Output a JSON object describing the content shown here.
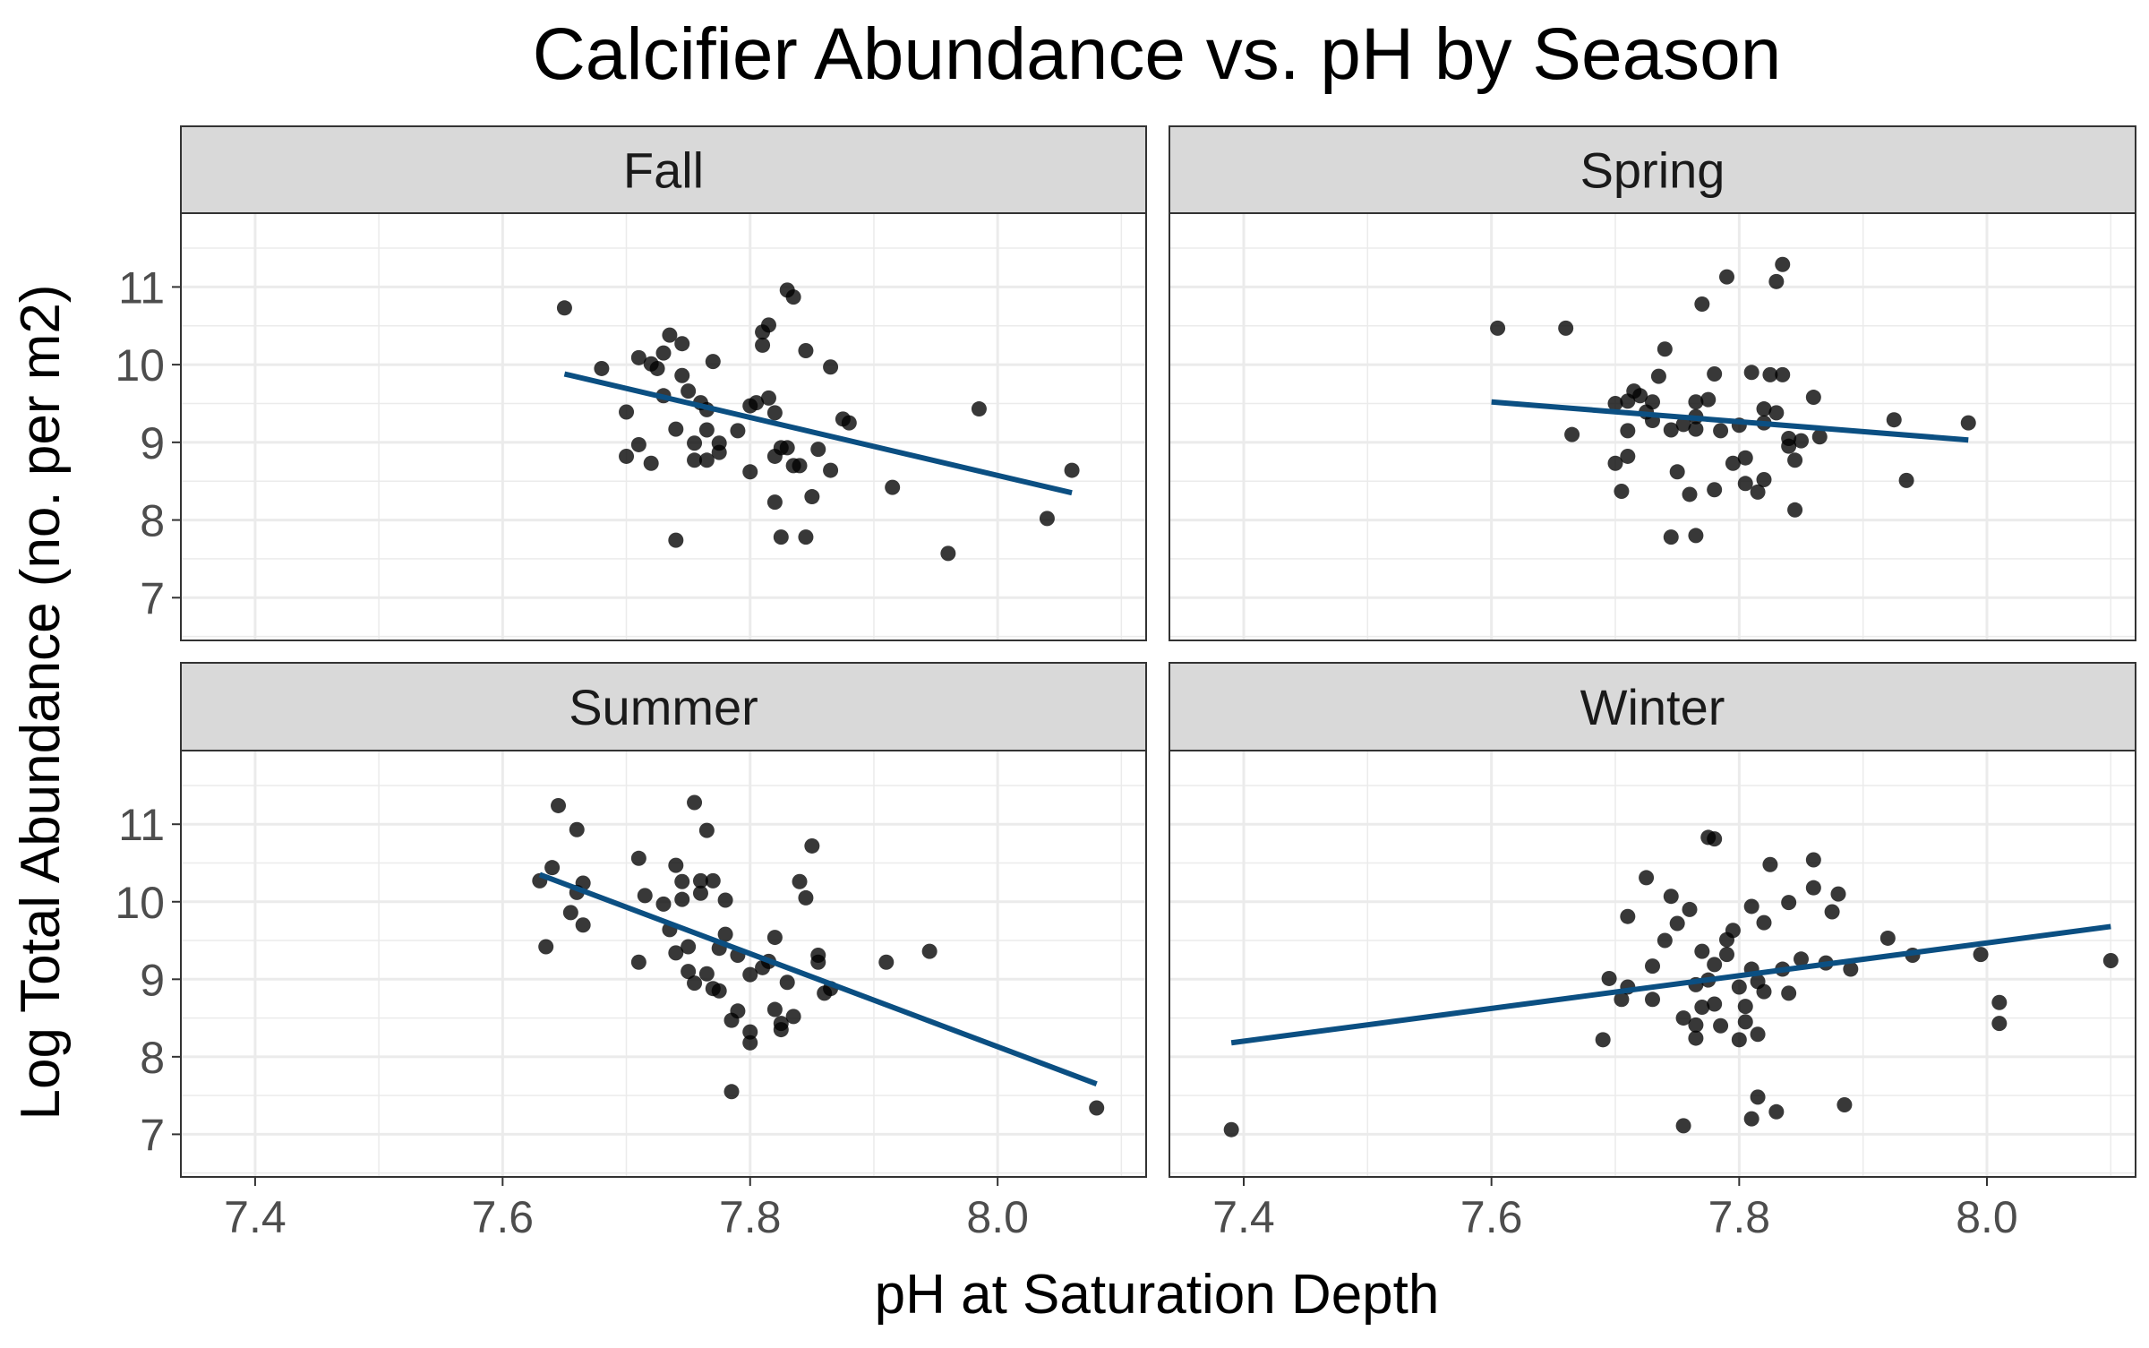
{
  "chart_data": {
    "type": "scatter",
    "title": "Calcifier Abundance vs. pH by Season",
    "xlabel": "pH at Saturation Depth",
    "ylabel": "Log Total Abundance (no. per m2)",
    "xlim": [
      7.34,
      8.12
    ],
    "ylim": [
      6.45,
      11.95
    ],
    "x_ticks": [
      7.4,
      7.6,
      7.8,
      8.0
    ],
    "y_ticks": [
      7,
      8,
      9,
      10,
      11
    ],
    "grid": true,
    "facets": [
      "Fall",
      "Spring",
      "Summer",
      "Winter"
    ],
    "colors": {
      "points": "#000000",
      "trend": "#0b4f82",
      "strip": "#d9d9d9",
      "grid": "#ebebeb"
    },
    "series": [
      {
        "facet": "Fall",
        "trend": {
          "x": [
            7.65,
            8.06
          ],
          "y": [
            9.88,
            8.35
          ]
        },
        "points": [
          [
            7.65,
            10.73
          ],
          [
            7.68,
            9.95
          ],
          [
            7.7,
            9.39
          ],
          [
            7.7,
            8.82
          ],
          [
            7.71,
            10.09
          ],
          [
            7.71,
            8.97
          ],
          [
            7.72,
            10.01
          ],
          [
            7.72,
            8.73
          ],
          [
            7.725,
            9.95
          ],
          [
            7.73,
            9.6
          ],
          [
            7.73,
            10.15
          ],
          [
            7.735,
            10.38
          ],
          [
            7.74,
            9.17
          ],
          [
            7.74,
            7.74
          ],
          [
            7.745,
            10.27
          ],
          [
            7.745,
            9.86
          ],
          [
            7.75,
            9.66
          ],
          [
            7.755,
            8.99
          ],
          [
            7.755,
            8.77
          ],
          [
            7.76,
            9.51
          ],
          [
            7.765,
            9.42
          ],
          [
            7.765,
            9.16
          ],
          [
            7.765,
            8.77
          ],
          [
            7.77,
            10.04
          ],
          [
            7.775,
            8.99
          ],
          [
            7.775,
            8.87
          ],
          [
            7.79,
            9.15
          ],
          [
            7.8,
            9.47
          ],
          [
            7.8,
            8.62
          ],
          [
            7.805,
            9.51
          ],
          [
            7.81,
            10.42
          ],
          [
            7.81,
            10.25
          ],
          [
            7.815,
            9.57
          ],
          [
            7.815,
            10.51
          ],
          [
            7.82,
            8.23
          ],
          [
            7.82,
            8.82
          ],
          [
            7.82,
            9.38
          ],
          [
            7.825,
            7.78
          ],
          [
            7.825,
            8.93
          ],
          [
            7.83,
            10.96
          ],
          [
            7.83,
            8.93
          ],
          [
            7.835,
            8.7
          ],
          [
            7.835,
            10.87
          ],
          [
            7.84,
            8.7
          ],
          [
            7.845,
            10.18
          ],
          [
            7.845,
            7.78
          ],
          [
            7.85,
            8.3
          ],
          [
            7.855,
            8.91
          ],
          [
            7.865,
            9.97
          ],
          [
            7.865,
            8.64
          ],
          [
            7.875,
            9.3
          ],
          [
            7.88,
            9.25
          ],
          [
            7.915,
            8.42
          ],
          [
            7.96,
            7.57
          ],
          [
            7.985,
            9.43
          ],
          [
            8.04,
            8.02
          ],
          [
            8.06,
            8.64
          ]
        ]
      },
      {
        "facet": "Spring",
        "trend": {
          "x": [
            7.6,
            7.985
          ],
          "y": [
            9.52,
            9.03
          ]
        },
        "points": [
          [
            7.605,
            10.47
          ],
          [
            7.66,
            10.47
          ],
          [
            7.665,
            9.1
          ],
          [
            7.7,
            8.73
          ],
          [
            7.7,
            9.5
          ],
          [
            7.705,
            8.37
          ],
          [
            7.71,
            9.53
          ],
          [
            7.71,
            9.15
          ],
          [
            7.71,
            8.82
          ],
          [
            7.715,
            9.66
          ],
          [
            7.72,
            9.6
          ],
          [
            7.725,
            9.39
          ],
          [
            7.73,
            9.52
          ],
          [
            7.73,
            9.28
          ],
          [
            7.735,
            9.85
          ],
          [
            7.74,
            10.2
          ],
          [
            7.745,
            9.16
          ],
          [
            7.745,
            7.78
          ],
          [
            7.75,
            8.62
          ],
          [
            7.755,
            9.23
          ],
          [
            7.76,
            8.33
          ],
          [
            7.765,
            9.17
          ],
          [
            7.765,
            9.52
          ],
          [
            7.765,
            9.33
          ],
          [
            7.765,
            7.8
          ],
          [
            7.77,
            10.78
          ],
          [
            7.775,
            9.55
          ],
          [
            7.78,
            8.39
          ],
          [
            7.78,
            9.88
          ],
          [
            7.785,
            9.15
          ],
          [
            7.79,
            11.13
          ],
          [
            7.795,
            8.73
          ],
          [
            7.8,
            9.22
          ],
          [
            7.805,
            8.8
          ],
          [
            7.805,
            8.47
          ],
          [
            7.81,
            9.9
          ],
          [
            7.815,
            8.36
          ],
          [
            7.82,
            9.43
          ],
          [
            7.82,
            8.52
          ],
          [
            7.82,
            9.25
          ],
          [
            7.825,
            9.87
          ],
          [
            7.83,
            9.38
          ],
          [
            7.83,
            11.07
          ],
          [
            7.835,
            11.29
          ],
          [
            7.835,
            9.87
          ],
          [
            7.84,
            8.95
          ],
          [
            7.84,
            9.05
          ],
          [
            7.845,
            8.77
          ],
          [
            7.845,
            8.13
          ],
          [
            7.85,
            9.02
          ],
          [
            7.86,
            9.58
          ],
          [
            7.865,
            9.07
          ],
          [
            7.925,
            9.29
          ],
          [
            7.935,
            8.51
          ],
          [
            7.985,
            9.25
          ]
        ]
      },
      {
        "facet": "Summer",
        "trend": {
          "x": [
            7.63,
            8.08
          ],
          "y": [
            10.35,
            7.65
          ]
        },
        "points": [
          [
            7.63,
            10.27
          ],
          [
            7.635,
            9.42
          ],
          [
            7.64,
            10.44
          ],
          [
            7.645,
            11.24
          ],
          [
            7.655,
            9.86
          ],
          [
            7.66,
            10.12
          ],
          [
            7.66,
            10.93
          ],
          [
            7.665,
            9.7
          ],
          [
            7.665,
            10.24
          ],
          [
            7.71,
            10.56
          ],
          [
            7.71,
            9.22
          ],
          [
            7.715,
            10.08
          ],
          [
            7.73,
            9.97
          ],
          [
            7.735,
            9.64
          ],
          [
            7.74,
            10.47
          ],
          [
            7.74,
            9.34
          ],
          [
            7.745,
            10.26
          ],
          [
            7.745,
            10.03
          ],
          [
            7.75,
            9.42
          ],
          [
            7.75,
            9.1
          ],
          [
            7.755,
            11.28
          ],
          [
            7.755,
            8.95
          ],
          [
            7.76,
            10.27
          ],
          [
            7.76,
            10.11
          ],
          [
            7.765,
            9.07
          ],
          [
            7.765,
            10.92
          ],
          [
            7.77,
            8.88
          ],
          [
            7.77,
            10.27
          ],
          [
            7.775,
            9.4
          ],
          [
            7.775,
            8.85
          ],
          [
            7.78,
            10.02
          ],
          [
            7.78,
            9.58
          ],
          [
            7.785,
            8.47
          ],
          [
            7.785,
            7.55
          ],
          [
            7.79,
            9.31
          ],
          [
            7.79,
            8.59
          ],
          [
            7.8,
            9.06
          ],
          [
            7.8,
            8.18
          ],
          [
            7.8,
            8.32
          ],
          [
            7.81,
            9.15
          ],
          [
            7.815,
            9.23
          ],
          [
            7.82,
            8.61
          ],
          [
            7.82,
            9.54
          ],
          [
            7.825,
            8.43
          ],
          [
            7.825,
            8.35
          ],
          [
            7.83,
            8.96
          ],
          [
            7.835,
            8.52
          ],
          [
            7.84,
            10.26
          ],
          [
            7.845,
            10.05
          ],
          [
            7.85,
            10.72
          ],
          [
            7.855,
            9.31
          ],
          [
            7.855,
            9.22
          ],
          [
            7.86,
            8.82
          ],
          [
            7.865,
            8.88
          ],
          [
            7.91,
            9.22
          ],
          [
            7.945,
            9.36
          ],
          [
            8.08,
            7.34
          ]
        ]
      },
      {
        "facet": "Winter",
        "trend": {
          "x": [
            7.39,
            8.1
          ],
          "y": [
            8.18,
            9.68
          ]
        },
        "points": [
          [
            7.39,
            7.06
          ],
          [
            7.69,
            8.22
          ],
          [
            7.695,
            9.01
          ],
          [
            7.705,
            8.74
          ],
          [
            7.71,
            9.81
          ],
          [
            7.71,
            8.9
          ],
          [
            7.725,
            10.31
          ],
          [
            7.73,
            9.17
          ],
          [
            7.73,
            8.74
          ],
          [
            7.74,
            9.5
          ],
          [
            7.745,
            10.07
          ],
          [
            7.75,
            9.72
          ],
          [
            7.755,
            8.5
          ],
          [
            7.755,
            7.11
          ],
          [
            7.76,
            9.9
          ],
          [
            7.765,
            8.41
          ],
          [
            7.765,
            8.24
          ],
          [
            7.765,
            8.93
          ],
          [
            7.77,
            9.36
          ],
          [
            7.77,
            8.64
          ],
          [
            7.775,
            8.99
          ],
          [
            7.775,
            10.83
          ],
          [
            7.78,
            10.81
          ],
          [
            7.78,
            9.19
          ],
          [
            7.78,
            8.68
          ],
          [
            7.785,
            8.4
          ],
          [
            7.79,
            9.51
          ],
          [
            7.79,
            9.32
          ],
          [
            7.795,
            9.63
          ],
          [
            7.8,
            8.9
          ],
          [
            7.8,
            8.22
          ],
          [
            7.805,
            8.45
          ],
          [
            7.805,
            8.65
          ],
          [
            7.81,
            9.13
          ],
          [
            7.81,
            7.2
          ],
          [
            7.81,
            9.94
          ],
          [
            7.815,
            8.97
          ],
          [
            7.815,
            8.29
          ],
          [
            7.815,
            7.48
          ],
          [
            7.82,
            9.73
          ],
          [
            7.82,
            8.84
          ],
          [
            7.825,
            10.48
          ],
          [
            7.83,
            7.29
          ],
          [
            7.835,
            9.13
          ],
          [
            7.84,
            8.82
          ],
          [
            7.84,
            9.99
          ],
          [
            7.85,
            9.26
          ],
          [
            7.86,
            10.54
          ],
          [
            7.86,
            10.18
          ],
          [
            7.87,
            9.21
          ],
          [
            7.875,
            9.87
          ],
          [
            7.88,
            10.1
          ],
          [
            7.885,
            7.38
          ],
          [
            7.89,
            9.13
          ],
          [
            7.92,
            9.53
          ],
          [
            7.94,
            9.31
          ],
          [
            7.995,
            9.32
          ],
          [
            8.01,
            8.7
          ],
          [
            8.01,
            8.43
          ],
          [
            8.1,
            9.24
          ]
        ]
      }
    ]
  }
}
